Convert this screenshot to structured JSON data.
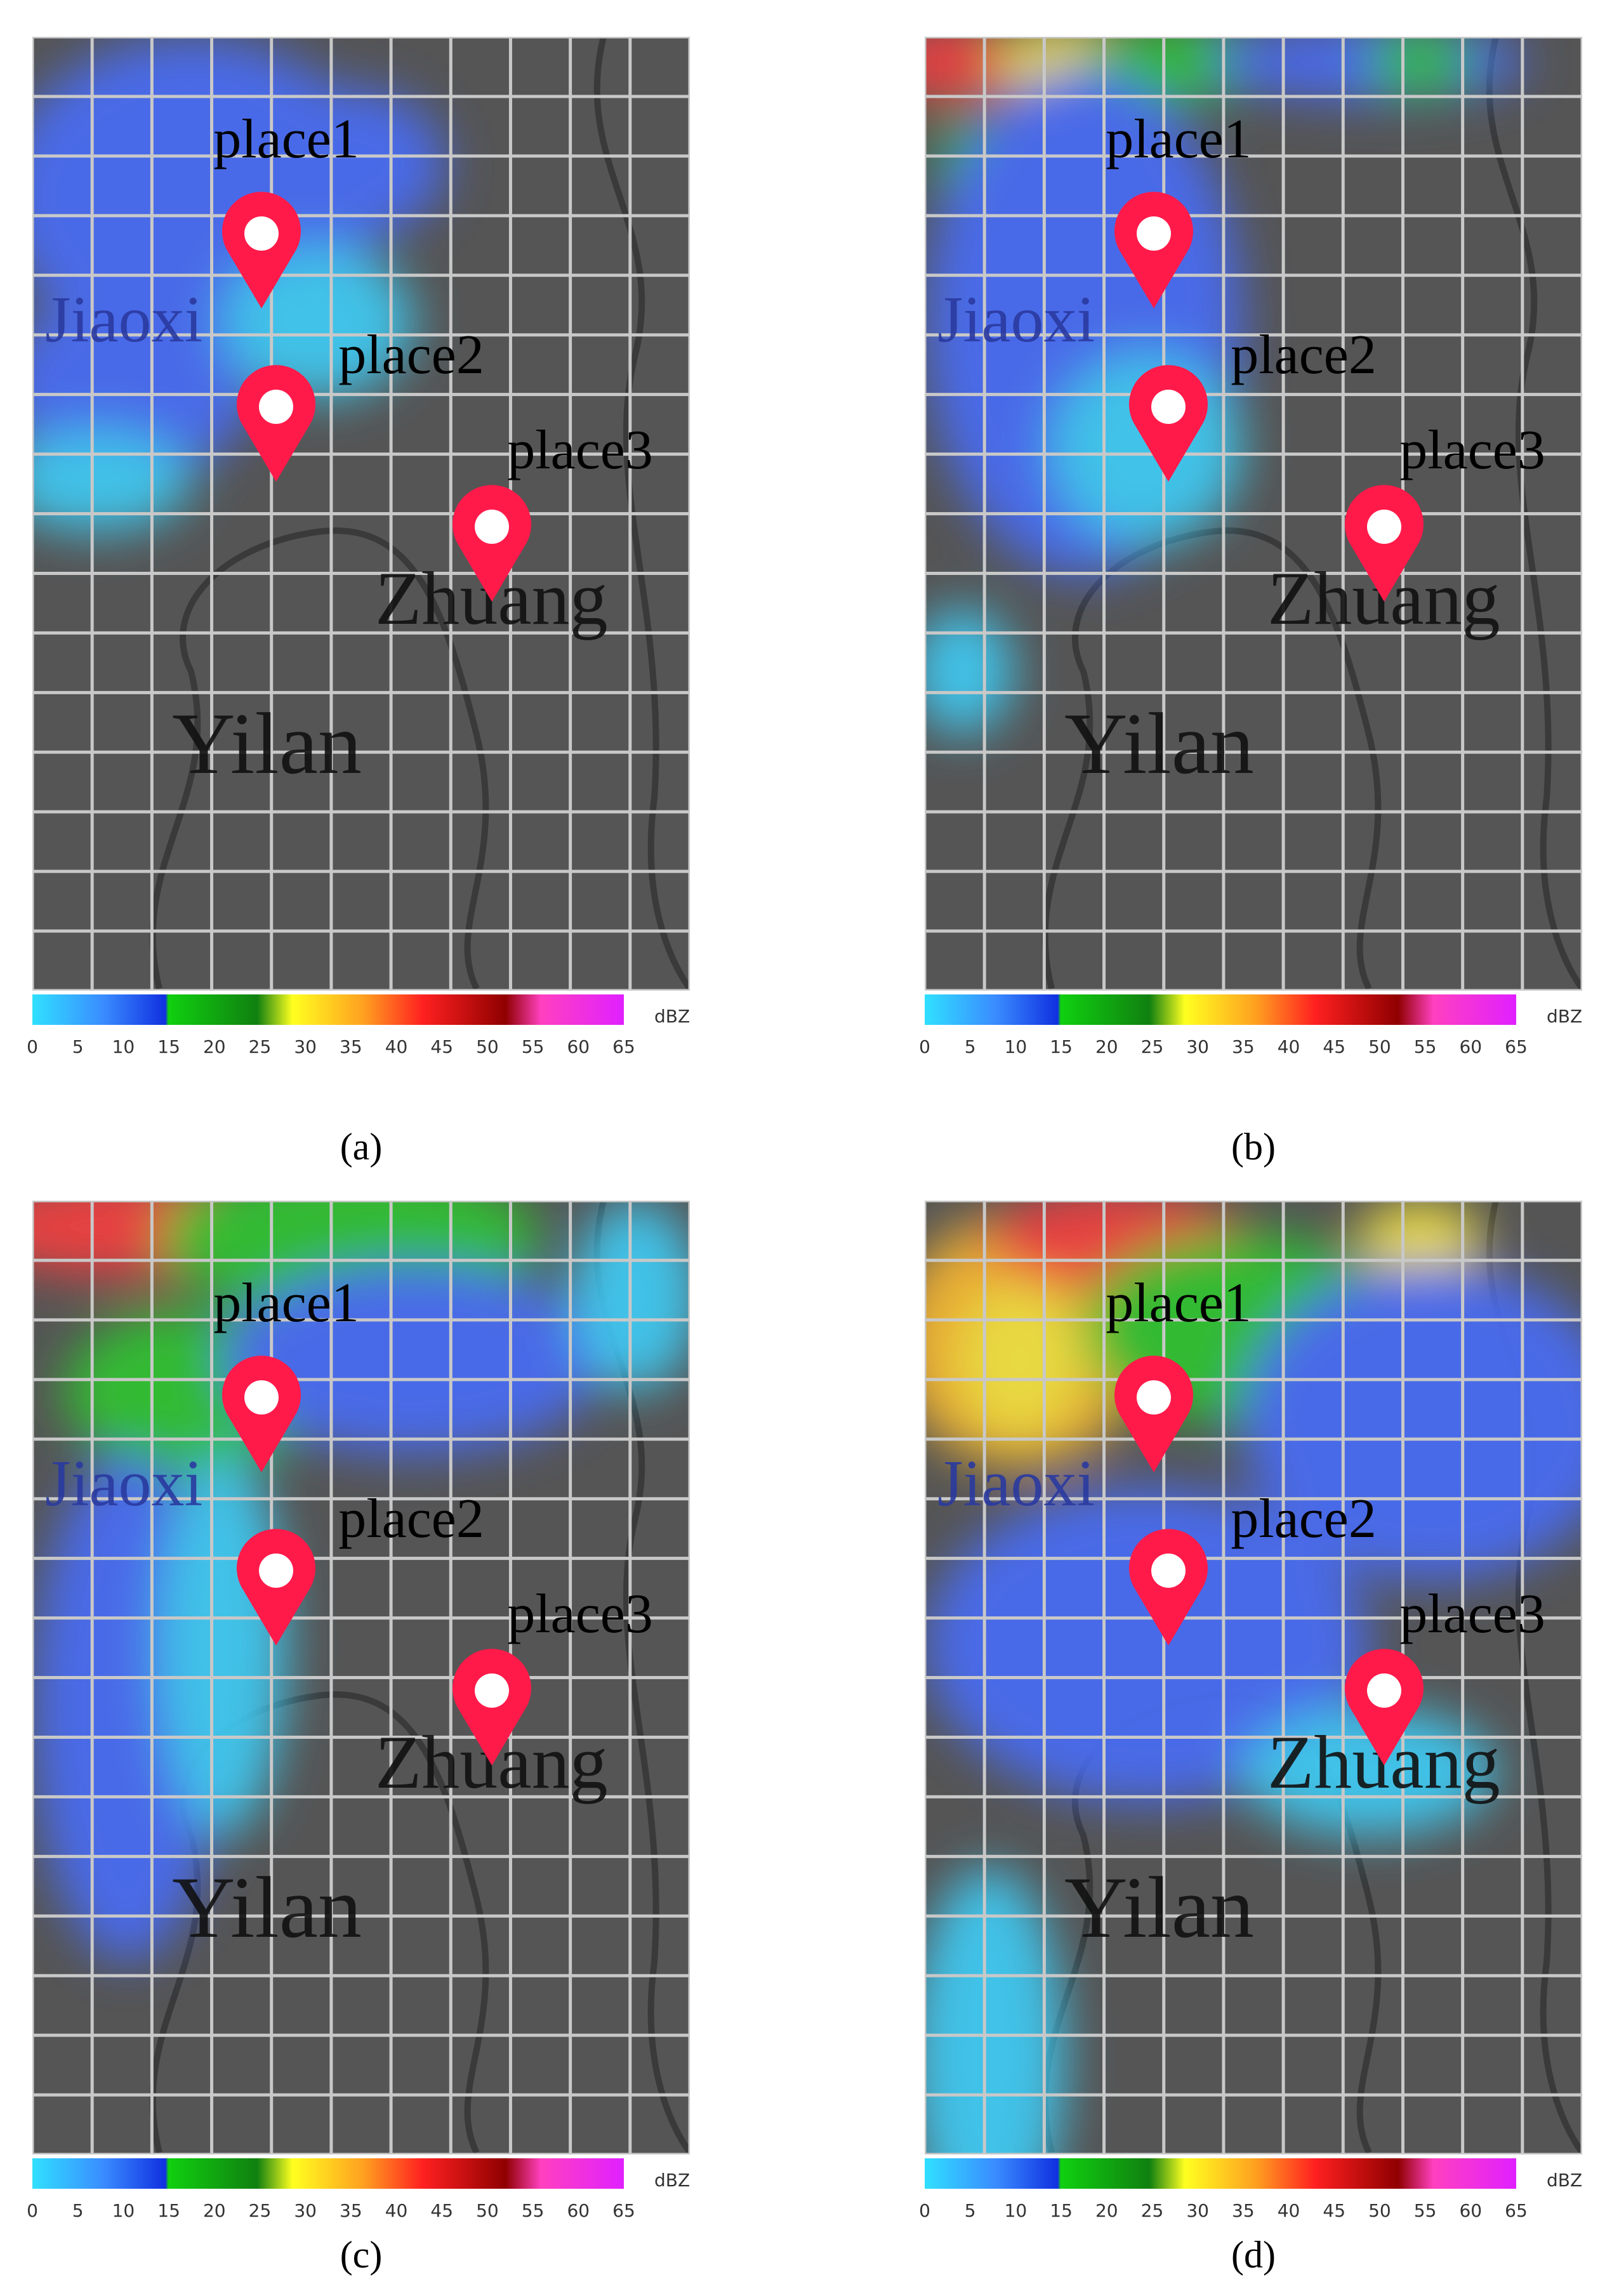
{
  "panels": [
    {
      "label": "(a)"
    },
    {
      "label": "(b)"
    },
    {
      "label": "(c)"
    },
    {
      "label": "(d)"
    }
  ],
  "map": {
    "places": [
      "place1",
      "place2",
      "place3"
    ],
    "towns": [
      "Jiaoxi",
      "Zhuang",
      "Yilan"
    ]
  },
  "colorbar": {
    "ticks": [
      "0",
      "5",
      "10",
      "15",
      "20",
      "25",
      "30",
      "35",
      "40",
      "45",
      "50",
      "55",
      "60",
      "65"
    ],
    "unit": "dBZ"
  }
}
